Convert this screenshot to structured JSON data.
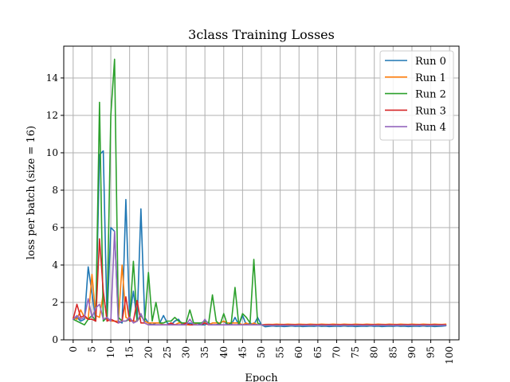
{
  "chart_data": {
    "type": "line",
    "title": "3class Training Losses",
    "xlabel": "Epoch",
    "ylabel": "loss per batch (size = 16)",
    "xlim": [
      -2.5,
      102.5
    ],
    "ylim": [
      0,
      15.7
    ],
    "xticks": [
      0,
      5,
      10,
      15,
      20,
      25,
      30,
      35,
      40,
      45,
      50,
      55,
      60,
      65,
      70,
      75,
      80,
      85,
      90,
      95,
      100
    ],
    "yticks": [
      0,
      2,
      4,
      6,
      8,
      10,
      12,
      14
    ],
    "grid": true,
    "legend_position": "top-right",
    "x": [
      0,
      1,
      2,
      3,
      4,
      5,
      6,
      7,
      8,
      9,
      10,
      11,
      12,
      13,
      14,
      15,
      16,
      17,
      18,
      19,
      20,
      21,
      22,
      23,
      24,
      25,
      26,
      27,
      28,
      29,
      30,
      31,
      32,
      33,
      34,
      35,
      36,
      37,
      38,
      39,
      40,
      41,
      42,
      43,
      44,
      45,
      46,
      47,
      48,
      49,
      50,
      51,
      52,
      53,
      54,
      55,
      56,
      57,
      58,
      59,
      60,
      61,
      62,
      63,
      64,
      65,
      66,
      67,
      68,
      69,
      70,
      71,
      72,
      73,
      74,
      75,
      76,
      77,
      78,
      79,
      80,
      81,
      82,
      83,
      84,
      85,
      86,
      87,
      88,
      89,
      90,
      91,
      92,
      93,
      94,
      95,
      96,
      97,
      98,
      99
    ],
    "series": [
      {
        "name": "Run 0",
        "color": "#1f77b4",
        "values": [
          1.1,
          1.2,
          1.0,
          1.1,
          3.9,
          2.5,
          1.0,
          9.9,
          10.1,
          1.0,
          6.0,
          5.8,
          1.0,
          0.9,
          7.5,
          1.2,
          2.6,
          1.0,
          7.0,
          1.2,
          0.9,
          0.8,
          0.9,
          0.9,
          1.3,
          0.9,
          0.8,
          1.0,
          1.1,
          0.8,
          0.8,
          0.9,
          0.8,
          0.9,
          0.8,
          0.8,
          0.9,
          0.8,
          0.8,
          0.9,
          1.0,
          0.8,
          0.8,
          1.2,
          0.8,
          1.3,
          0.8,
          0.9,
          0.8,
          1.2,
          0.8,
          0.7,
          0.72,
          0.74,
          0.72,
          0.73,
          0.71,
          0.72,
          0.74,
          0.72,
          0.73,
          0.71,
          0.72,
          0.73,
          0.72,
          0.74,
          0.72,
          0.73,
          0.71,
          0.72,
          0.73,
          0.72,
          0.74,
          0.72,
          0.73,
          0.71,
          0.72,
          0.73,
          0.72,
          0.74,
          0.72,
          0.73,
          0.71,
          0.72,
          0.73,
          0.72,
          0.74,
          0.72,
          0.73,
          0.71,
          0.72,
          0.73,
          0.72,
          0.74,
          0.72,
          0.73,
          0.71,
          0.72,
          0.73,
          0.75
        ]
      },
      {
        "name": "Run 1",
        "color": "#ff7f0e",
        "values": [
          1.2,
          1.1,
          1.6,
          1.2,
          1.1,
          3.5,
          1.3,
          1.2,
          2.5,
          1.1,
          1.0,
          1.0,
          1.0,
          4.0,
          1.2,
          1.1,
          1.0,
          1.0,
          1.3,
          1.0,
          0.9,
          0.9,
          0.9,
          0.9,
          0.8,
          0.8,
          0.9,
          0.8,
          0.9,
          0.9,
          0.8,
          0.8,
          0.8,
          0.9,
          0.9,
          0.9,
          0.8,
          0.9,
          0.9,
          0.9,
          1.0,
          0.9,
          0.9,
          0.9,
          0.9,
          0.8,
          0.9,
          0.8,
          0.9,
          0.8,
          0.8,
          0.82,
          0.83,
          0.82,
          0.84,
          0.83,
          0.82,
          0.84,
          0.83,
          0.82,
          0.84,
          0.83,
          0.82,
          0.84,
          0.83,
          0.82,
          0.84,
          0.83,
          0.82,
          0.84,
          0.83,
          0.82,
          0.84,
          0.83,
          0.82,
          0.84,
          0.83,
          0.82,
          0.84,
          0.83,
          0.82,
          0.84,
          0.83,
          0.82,
          0.84,
          0.83,
          0.82,
          0.84,
          0.83,
          0.82,
          0.84,
          0.83,
          0.82,
          0.84,
          0.83,
          0.82,
          0.84,
          0.83,
          0.82,
          0.84
        ]
      },
      {
        "name": "Run 2",
        "color": "#2ca02c",
        "values": [
          1.1,
          1.0,
          0.9,
          0.8,
          1.1,
          1.3,
          1.0,
          12.7,
          1.0,
          1.2,
          12.0,
          15.0,
          1.2,
          1.0,
          1.0,
          1.1,
          4.2,
          1.0,
          1.3,
          1.0,
          3.6,
          1.0,
          2.0,
          0.9,
          0.9,
          1.0,
          1.0,
          1.2,
          1.0,
          0.9,
          0.9,
          1.6,
          0.9,
          0.9,
          0.9,
          1.0,
          0.9,
          2.4,
          1.0,
          0.8,
          1.4,
          0.8,
          0.9,
          2.8,
          0.8,
          1.4,
          1.2,
          0.9,
          4.3,
          0.9,
          0.8,
          0.76,
          0.77,
          0.78,
          0.76,
          0.77,
          0.78,
          0.76,
          0.77,
          0.78,
          0.76,
          0.77,
          0.78,
          0.76,
          0.77,
          0.78,
          0.76,
          0.77,
          0.78,
          0.76,
          0.77,
          0.78,
          0.76,
          0.77,
          0.78,
          0.76,
          0.77,
          0.78,
          0.76,
          0.77,
          0.78,
          0.76,
          0.77,
          0.78,
          0.76,
          0.77,
          0.78,
          0.76,
          0.77,
          0.78,
          0.76,
          0.77,
          0.78,
          0.76,
          0.77,
          0.78,
          0.76,
          0.77,
          0.78,
          0.78
        ]
      },
      {
        "name": "Run 3",
        "color": "#d62728",
        "values": [
          1.1,
          1.9,
          1.2,
          1.3,
          1.1,
          1.1,
          1.0,
          5.4,
          2.6,
          1.0,
          1.1,
          1.0,
          0.9,
          1.0,
          2.3,
          1.0,
          1.0,
          2.1,
          0.9,
          0.9,
          0.8,
          0.8,
          0.8,
          0.8,
          0.8,
          0.8,
          0.9,
          0.8,
          0.8,
          0.8,
          0.9,
          0.8,
          0.8,
          0.8,
          0.8,
          0.9,
          0.8,
          0.8,
          0.8,
          0.8,
          0.8,
          0.8,
          0.8,
          0.8,
          0.8,
          0.8,
          0.8,
          0.8,
          0.8,
          0.8,
          0.8,
          0.8,
          0.81,
          0.8,
          0.81,
          0.8,
          0.81,
          0.8,
          0.81,
          0.8,
          0.81,
          0.8,
          0.81,
          0.8,
          0.81,
          0.8,
          0.81,
          0.8,
          0.81,
          0.8,
          0.81,
          0.8,
          0.81,
          0.8,
          0.81,
          0.8,
          0.81,
          0.8,
          0.81,
          0.8,
          0.81,
          0.8,
          0.81,
          0.8,
          0.81,
          0.8,
          0.81,
          0.8,
          0.81,
          0.8,
          0.81,
          0.8,
          0.81,
          0.8,
          0.81,
          0.8,
          0.81,
          0.8,
          0.81,
          0.8
        ]
      },
      {
        "name": "Run 4",
        "color": "#9467bd",
        "values": [
          1.1,
          1.3,
          1.1,
          1.2,
          2.2,
          1.2,
          1.7,
          1.9,
          1.1,
          1.2,
          1.0,
          5.8,
          0.9,
          1.0,
          1.0,
          1.2,
          0.9,
          1.0,
          1.4,
          0.9,
          0.8,
          0.8,
          0.8,
          0.8,
          0.8,
          0.8,
          0.8,
          0.8,
          0.8,
          0.8,
          0.8,
          1.1,
          0.8,
          0.8,
          0.8,
          1.1,
          0.8,
          0.8,
          0.8,
          0.8,
          0.8,
          0.8,
          0.8,
          0.8,
          0.8,
          0.8,
          0.8,
          0.8,
          0.8,
          0.8,
          0.8,
          0.77,
          0.78,
          0.77,
          0.78,
          0.77,
          0.78,
          0.77,
          0.78,
          0.77,
          0.78,
          0.77,
          0.78,
          0.77,
          0.78,
          0.77,
          0.78,
          0.77,
          0.78,
          0.77,
          0.78,
          0.77,
          0.78,
          0.77,
          0.78,
          0.77,
          0.78,
          0.77,
          0.78,
          0.77,
          0.78,
          0.77,
          0.78,
          0.77,
          0.78,
          0.77,
          0.78,
          0.77,
          0.78,
          0.77,
          0.78,
          0.77,
          0.78,
          0.77,
          0.78,
          0.77,
          0.78,
          0.77,
          0.78,
          0.78
        ]
      }
    ]
  }
}
